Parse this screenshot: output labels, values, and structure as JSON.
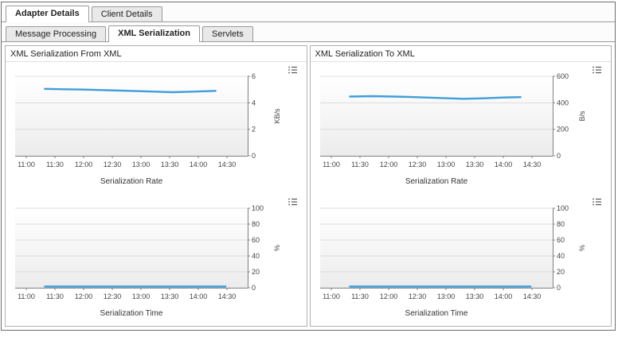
{
  "tabs": {
    "primary": [
      {
        "label": "Adapter Details",
        "active": true
      },
      {
        "label": "Client Details",
        "active": false
      }
    ],
    "secondary": [
      {
        "label": "Message Processing",
        "active": false
      },
      {
        "label": "XML Serialization",
        "active": true
      },
      {
        "label": "Servlets",
        "active": false
      }
    ]
  },
  "panels": [
    {
      "title": "XML Serialization From XML"
    },
    {
      "title": "XML Serialization To XML"
    }
  ],
  "colors": {
    "line": "#3f9ed9",
    "axis": "#808080",
    "grid": "#dddddd",
    "text": "#444444"
  },
  "chart_data": [
    {
      "type": "line",
      "panel": "XML Serialization From XML",
      "title": "Serialization Rate",
      "ylabel": "KB/s",
      "ylim": [
        0,
        6
      ],
      "yticks": [
        0,
        2,
        4,
        6
      ],
      "x_labels": [
        "11:00",
        "11:30",
        "12:00",
        "12:30",
        "13:00",
        "13:30",
        "14:00",
        "14:30"
      ],
      "points": [
        {
          "x": 0.65,
          "y": 5.05
        },
        {
          "x": 1.3,
          "y": 5.02
        },
        {
          "x": 2.0,
          "y": 5.0
        },
        {
          "x": 2.8,
          "y": 4.95
        },
        {
          "x": 3.6,
          "y": 4.9
        },
        {
          "x": 4.4,
          "y": 4.85
        },
        {
          "x": 5.1,
          "y": 4.8
        },
        {
          "x": 5.9,
          "y": 4.85
        },
        {
          "x": 6.6,
          "y": 4.9
        }
      ]
    },
    {
      "type": "line",
      "panel": "XML Serialization From XML",
      "title": "Serialization Time",
      "ylabel": "%",
      "ylim": [
        0,
        100
      ],
      "yticks": [
        0,
        20,
        40,
        60,
        80,
        100
      ],
      "x_labels": [
        "11:00",
        "11:30",
        "12:00",
        "12:30",
        "13:00",
        "13:30",
        "14:00",
        "14:30"
      ],
      "points": [
        {
          "x": 0.65,
          "y": 1.5
        },
        {
          "x": 2.0,
          "y": 1.5
        },
        {
          "x": 3.5,
          "y": 1.5
        },
        {
          "x": 5.0,
          "y": 1.5
        },
        {
          "x": 6.0,
          "y": 1.5
        },
        {
          "x": 6.95,
          "y": 1.5
        }
      ]
    },
    {
      "type": "line",
      "panel": "XML Serialization To XML",
      "title": "Serialization Rate",
      "ylabel": "B/s",
      "ylim": [
        0,
        600
      ],
      "yticks": [
        0,
        200,
        400,
        600
      ],
      "x_labels": [
        "11:00",
        "11:30",
        "12:00",
        "12:30",
        "13:00",
        "13:30",
        "14:00",
        "14:30"
      ],
      "points": [
        {
          "x": 0.65,
          "y": 447
        },
        {
          "x": 1.4,
          "y": 450
        },
        {
          "x": 2.2,
          "y": 447
        },
        {
          "x": 3.0,
          "y": 442
        },
        {
          "x": 3.8,
          "y": 436
        },
        {
          "x": 4.6,
          "y": 430
        },
        {
          "x": 5.3,
          "y": 434
        },
        {
          "x": 6.0,
          "y": 440
        },
        {
          "x": 6.6,
          "y": 443
        }
      ]
    },
    {
      "type": "line",
      "panel": "XML Serialization To XML",
      "title": "Serialization Time",
      "ylabel": "%",
      "ylim": [
        0,
        100
      ],
      "yticks": [
        0,
        20,
        40,
        60,
        80,
        100
      ],
      "x_labels": [
        "11:00",
        "11:30",
        "12:00",
        "12:30",
        "13:00",
        "13:30",
        "14:00",
        "14:30"
      ],
      "points": [
        {
          "x": 0.65,
          "y": 1.5
        },
        {
          "x": 2.0,
          "y": 1.5
        },
        {
          "x": 3.5,
          "y": 1.5
        },
        {
          "x": 5.0,
          "y": 1.5
        },
        {
          "x": 6.0,
          "y": 1.5
        },
        {
          "x": 6.95,
          "y": 1.5
        }
      ]
    }
  ]
}
